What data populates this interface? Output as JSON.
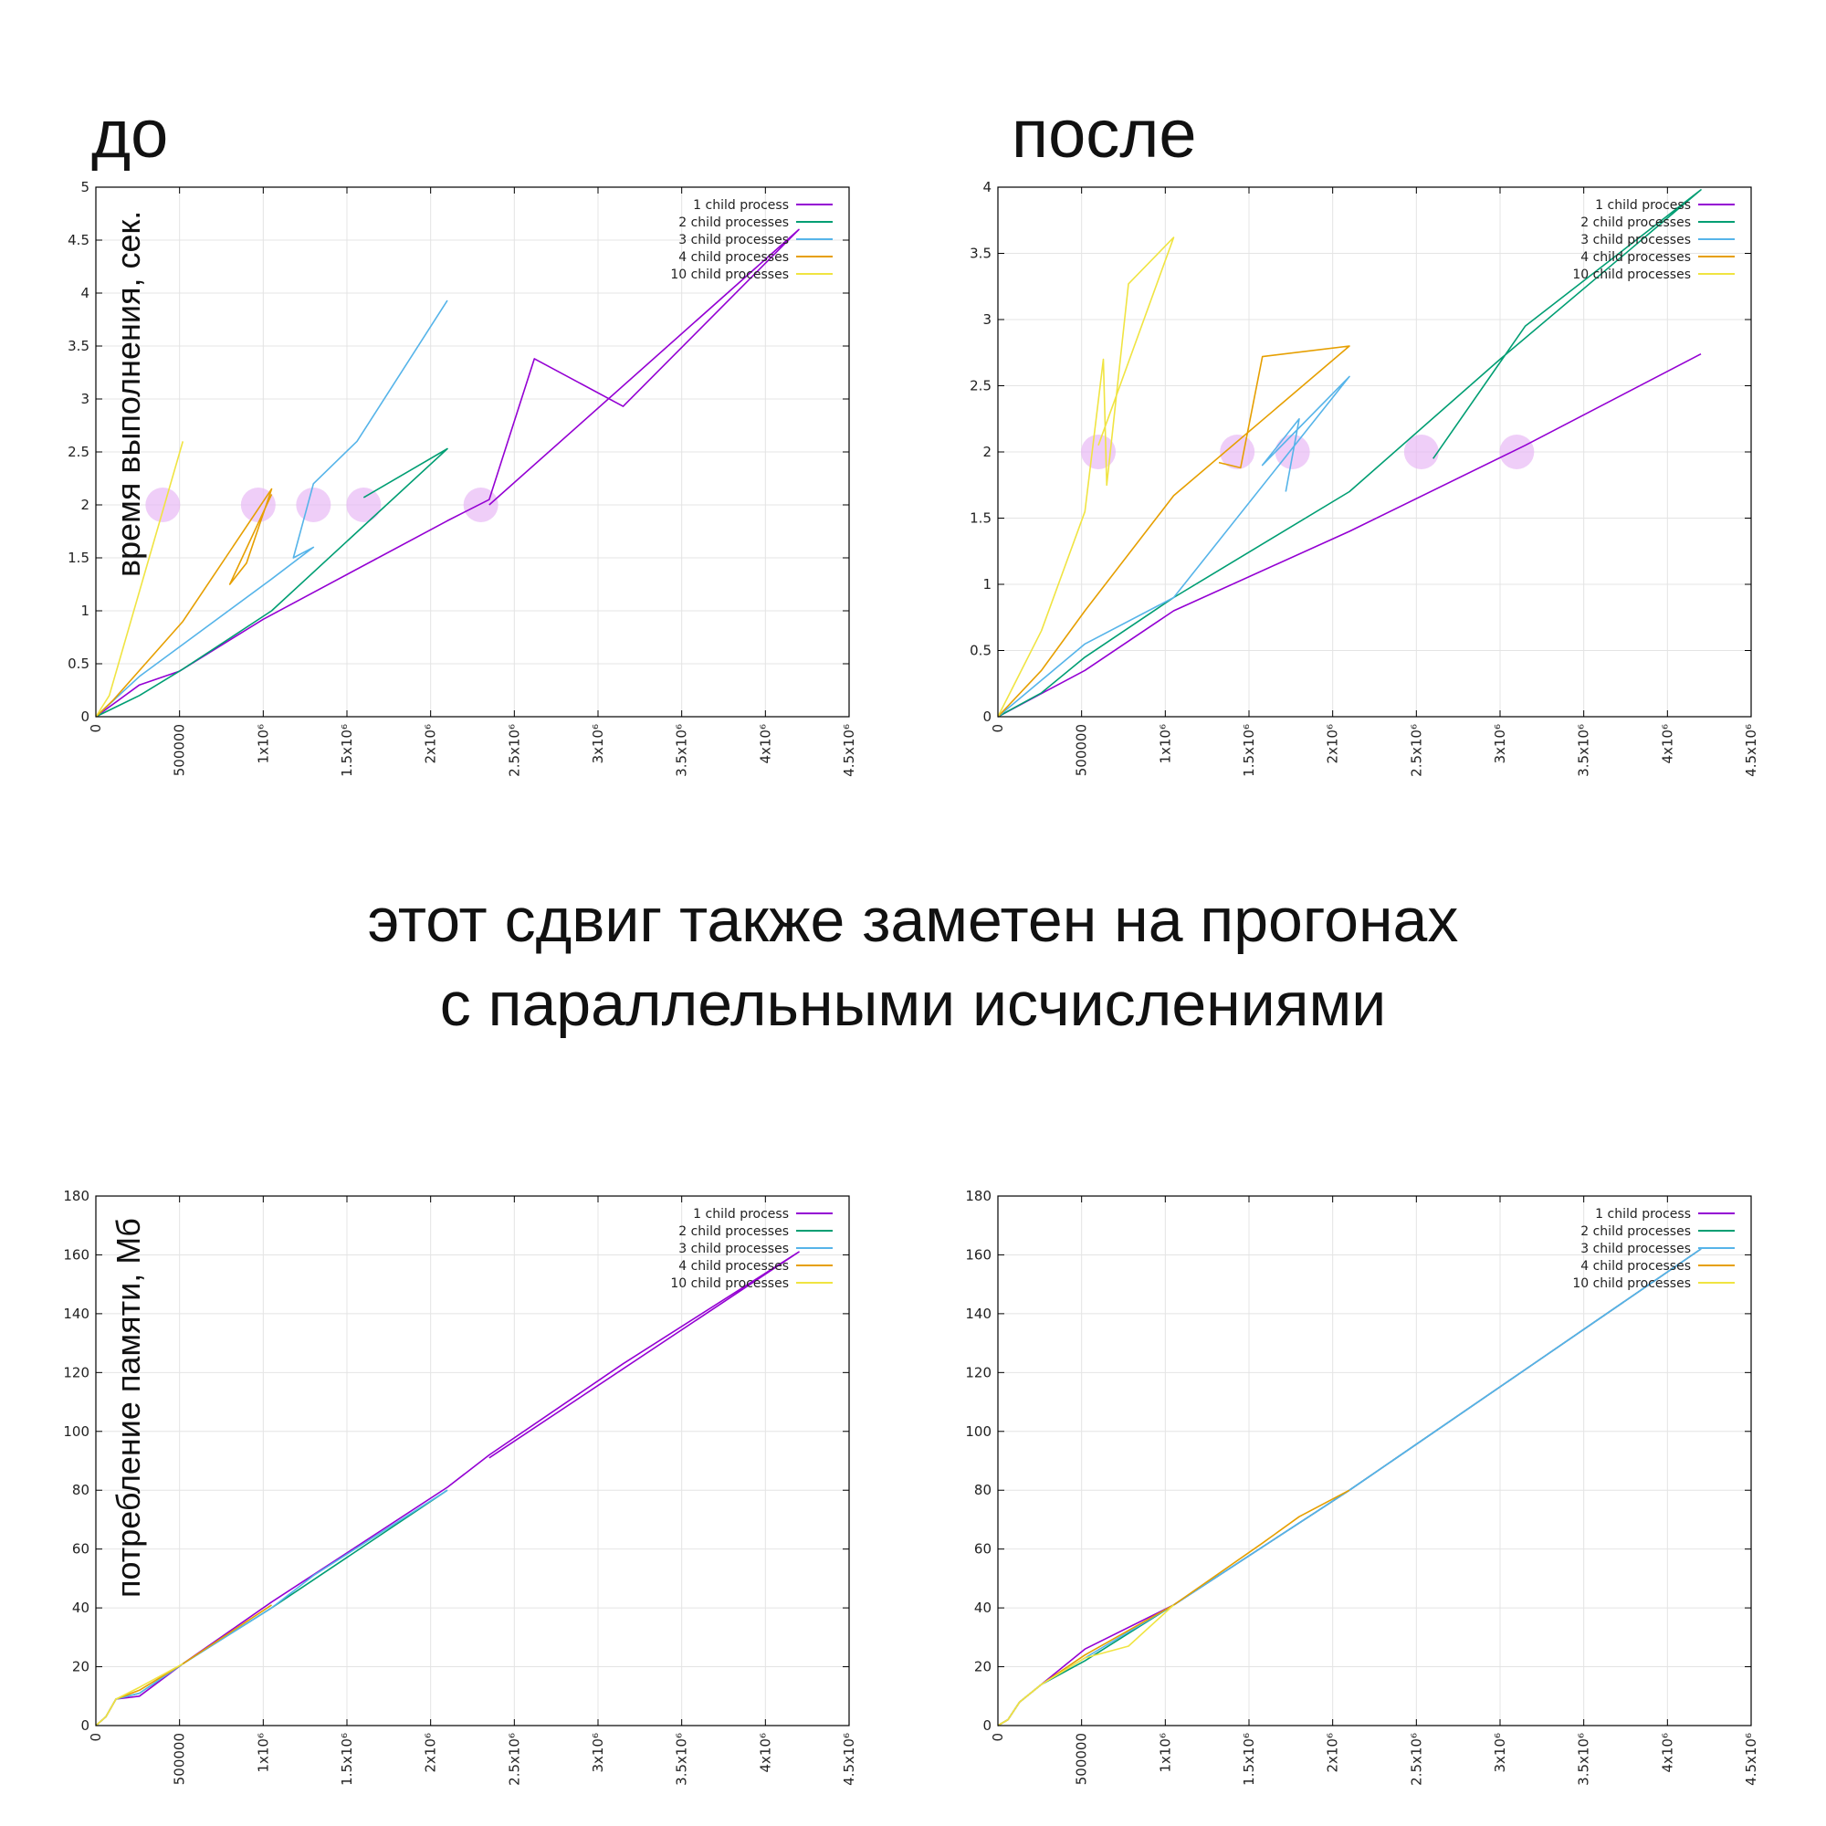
{
  "headings": {
    "before": "до",
    "after": "после"
  },
  "caption": {
    "line1": "этот сдвиг также заметен на прогонах",
    "line2": "с параллельными исчислениями"
  },
  "y_labels": {
    "time": "время выполнения, сек.",
    "memory": "потребление памяти, Мб"
  },
  "series_colors": [
    "#9400d3",
    "#009e73",
    "#56b4e9",
    "#e69f00",
    "#f0e442"
  ],
  "chart_data": [
    {
      "type": "line",
      "panel": "top-left",
      "ylabel": "время выполнения, сек.",
      "xlim": [
        0,
        4500000
      ],
      "ylim": [
        0,
        5
      ],
      "xticks": [
        "0",
        "500000",
        "1x10⁶",
        "1.5x10⁶",
        "2x10⁶",
        "2.5x10⁶",
        "3x10⁶",
        "3.5x10⁶",
        "4x10⁶",
        "4.5x10⁶"
      ],
      "yticks": [
        "0",
        "0.5",
        "1",
        "1.5",
        "2",
        "2.5",
        "3",
        "3.5",
        "4",
        "4.5",
        "5"
      ],
      "grid": true,
      "legend": "top-right",
      "series": [
        {
          "name": "1 child process",
          "points": [
            [
              0,
              0
            ],
            [
              260000,
              0.3
            ],
            [
              500000,
              0.43
            ],
            [
              1000000,
              0.92
            ],
            [
              2100000,
              1.85
            ],
            [
              2350000,
              2.05
            ],
            [
              2620000,
              3.38
            ],
            [
              3150000,
              2.93
            ],
            [
              4200000,
              4.6
            ],
            [
              2350000,
              2.0
            ]
          ]
        },
        {
          "name": "2 child processes",
          "points": [
            [
              0,
              0
            ],
            [
              260000,
              0.2
            ],
            [
              520000,
              0.45
            ],
            [
              1050000,
              1.0
            ],
            [
              2100000,
              2.53
            ],
            [
              1600000,
              2.07
            ]
          ]
        },
        {
          "name": "3 child processes",
          "points": [
            [
              0,
              0
            ],
            [
              260000,
              0.38
            ],
            [
              1050000,
              1.3
            ],
            [
              1300000,
              1.6
            ],
            [
              1180000,
              1.5
            ],
            [
              1300000,
              2.2
            ],
            [
              1560000,
              2.6
            ],
            [
              2100000,
              3.93
            ]
          ]
        },
        {
          "name": "4 child processes",
          "points": [
            [
              0,
              0
            ],
            [
              100000,
              0.15
            ],
            [
              520000,
              0.9
            ],
            [
              1050000,
              2.15
            ],
            [
              900000,
              1.45
            ],
            [
              800000,
              1.25
            ],
            [
              1050000,
              2.1
            ]
          ]
        },
        {
          "name": "10 child processes",
          "points": [
            [
              0,
              0
            ],
            [
              80000,
              0.2
            ],
            [
              520000,
              2.6
            ]
          ]
        }
      ],
      "highlights": [
        [
          400000,
          2
        ],
        [
          970000,
          2
        ],
        [
          1300000,
          2
        ],
        [
          1600000,
          2
        ],
        [
          2300000,
          2
        ]
      ]
    },
    {
      "type": "line",
      "panel": "top-right",
      "xlim": [
        0,
        4500000
      ],
      "ylim": [
        0,
        4
      ],
      "xticks": [
        "0",
        "500000",
        "1x10⁶",
        "1.5x10⁶",
        "2x10⁶",
        "2.5x10⁶",
        "3x10⁶",
        "3.5x10⁶",
        "4x10⁶",
        "4.5x10⁶"
      ],
      "yticks": [
        "0",
        "0.5",
        "1",
        "1.5",
        "2",
        "2.5",
        "3",
        "3.5",
        "4"
      ],
      "grid": true,
      "legend": "top-right",
      "series": [
        {
          "name": "1 child process",
          "points": [
            [
              0,
              0
            ],
            [
              520000,
              0.35
            ],
            [
              1050000,
              0.8
            ],
            [
              2100000,
              1.4
            ],
            [
              3150000,
              2.05
            ],
            [
              4200000,
              2.74
            ]
          ]
        },
        {
          "name": "2 child processes",
          "points": [
            [
              0,
              0
            ],
            [
              260000,
              0.18
            ],
            [
              520000,
              0.45
            ],
            [
              1050000,
              0.9
            ],
            [
              2100000,
              1.7
            ],
            [
              3000000,
              2.7
            ],
            [
              4200000,
              3.98
            ],
            [
              3150000,
              2.95
            ],
            [
              2600000,
              1.95
            ]
          ]
        },
        {
          "name": "3 child processes",
          "points": [
            [
              0,
              0
            ],
            [
              520000,
              0.55
            ],
            [
              1050000,
              0.9
            ],
            [
              2100000,
              2.57
            ],
            [
              1580000,
              1.9
            ],
            [
              1800000,
              2.25
            ],
            [
              1720000,
              1.7
            ]
          ]
        },
        {
          "name": "4 child processes",
          "points": [
            [
              0,
              0
            ],
            [
              260000,
              0.35
            ],
            [
              520000,
              0.8
            ],
            [
              1050000,
              1.67
            ],
            [
              2100000,
              2.8
            ],
            [
              1580000,
              2.72
            ],
            [
              1450000,
              1.88
            ],
            [
              1320000,
              1.92
            ]
          ]
        },
        {
          "name": "10 child processes",
          "points": [
            [
              0,
              0
            ],
            [
              80000,
              0.2
            ],
            [
              260000,
              0.65
            ],
            [
              520000,
              1.55
            ],
            [
              630000,
              2.7
            ],
            [
              650000,
              1.75
            ],
            [
              780000,
              3.27
            ],
            [
              1050000,
              3.62
            ],
            [
              600000,
              2.05
            ]
          ]
        }
      ],
      "highlights": [
        [
          600000,
          2
        ],
        [
          1430000,
          2
        ],
        [
          1760000,
          2
        ],
        [
          2530000,
          2
        ],
        [
          3100000,
          2
        ]
      ]
    },
    {
      "type": "line",
      "panel": "bottom-left",
      "ylabel": "потребление памяти, Мб",
      "xlim": [
        0,
        4500000
      ],
      "ylim": [
        0,
        180
      ],
      "xticks": [
        "0",
        "500000",
        "1x10⁶",
        "1.5x10⁶",
        "2x10⁶",
        "2.5x10⁶",
        "3x10⁶",
        "3.5x10⁶",
        "4x10⁶",
        "4.5x10⁶"
      ],
      "yticks": [
        "0",
        "20",
        "40",
        "60",
        "80",
        "100",
        "120",
        "140",
        "160",
        "180"
      ],
      "grid": true,
      "legend": "top-right",
      "series": [
        {
          "name": "1 child process",
          "points": [
            [
              0,
              0
            ],
            [
              60000,
              3
            ],
            [
              120000,
              9
            ],
            [
              260000,
              10
            ],
            [
              520000,
              21
            ],
            [
              1050000,
              42
            ],
            [
              2100000,
              81
            ],
            [
              2350000,
              92
            ],
            [
              3150000,
              123
            ],
            [
              4200000,
              161
            ],
            [
              2350000,
              91
            ]
          ]
        },
        {
          "name": "2 child processes",
          "points": [
            [
              0,
              0
            ],
            [
              60000,
              3
            ],
            [
              120000,
              9
            ],
            [
              260000,
              11
            ],
            [
              520000,
              21
            ],
            [
              1050000,
              40
            ],
            [
              2100000,
              80
            ]
          ]
        },
        {
          "name": "3 child processes",
          "points": [
            [
              0,
              0
            ],
            [
              60000,
              3
            ],
            [
              120000,
              9
            ],
            [
              260000,
              11
            ],
            [
              520000,
              21
            ],
            [
              1050000,
              40
            ],
            [
              1300000,
              51
            ],
            [
              2100000,
              80
            ]
          ]
        },
        {
          "name": "4 child processes",
          "points": [
            [
              0,
              0
            ],
            [
              60000,
              3
            ],
            [
              120000,
              9
            ],
            [
              260000,
              12
            ],
            [
              520000,
              21
            ],
            [
              1050000,
              41
            ]
          ]
        },
        {
          "name": "10 child processes",
          "points": [
            [
              0,
              0
            ],
            [
              60000,
              3
            ],
            [
              120000,
              9
            ],
            [
              260000,
              13
            ],
            [
              520000,
              21
            ]
          ]
        }
      ]
    },
    {
      "type": "line",
      "panel": "bottom-right",
      "xlim": [
        0,
        4500000
      ],
      "ylim": [
        0,
        180
      ],
      "xticks": [
        "0",
        "500000",
        "1x10⁶",
        "1.5x10⁶",
        "2x10⁶",
        "2.5x10⁶",
        "3x10⁶",
        "3.5x10⁶",
        "4x10⁶",
        "4.5x10⁶"
      ],
      "yticks": [
        "0",
        "20",
        "40",
        "60",
        "80",
        "100",
        "120",
        "140",
        "160",
        "180"
      ],
      "grid": true,
      "legend": "top-right",
      "series": [
        {
          "name": "1 child process",
          "points": [
            [
              0,
              0
            ],
            [
              60000,
              2
            ],
            [
              130000,
              8
            ],
            [
              260000,
              14
            ],
            [
              520000,
              26
            ],
            [
              1050000,
              41
            ],
            [
              2100000,
              80
            ],
            [
              3150000,
              121
            ],
            [
              4200000,
              162
            ]
          ]
        },
        {
          "name": "2 child processes",
          "points": [
            [
              0,
              0
            ],
            [
              60000,
              2
            ],
            [
              130000,
              8
            ],
            [
              260000,
              14
            ],
            [
              520000,
              22
            ],
            [
              1050000,
              41
            ],
            [
              2100000,
              80
            ],
            [
              3150000,
              121
            ],
            [
              4200000,
              162
            ]
          ]
        },
        {
          "name": "3 child processes",
          "points": [
            [
              0,
              0
            ],
            [
              60000,
              2
            ],
            [
              130000,
              8
            ],
            [
              260000,
              14
            ],
            [
              520000,
              23
            ],
            [
              1050000,
              41
            ],
            [
              2100000,
              80
            ],
            [
              3150000,
              121
            ],
            [
              4200000,
              162
            ]
          ]
        },
        {
          "name": "4 child processes",
          "points": [
            [
              0,
              0
            ],
            [
              60000,
              2
            ],
            [
              130000,
              8
            ],
            [
              260000,
              14
            ],
            [
              520000,
              24
            ],
            [
              1050000,
              41
            ],
            [
              1580000,
              62
            ],
            [
              1800000,
              71
            ],
            [
              2100000,
              80
            ]
          ]
        },
        {
          "name": "10 child processes",
          "points": [
            [
              0,
              0
            ],
            [
              60000,
              2
            ],
            [
              130000,
              8
            ],
            [
              260000,
              14
            ],
            [
              520000,
              23
            ],
            [
              780000,
              27
            ],
            [
              1050000,
              41
            ]
          ]
        }
      ]
    }
  ]
}
